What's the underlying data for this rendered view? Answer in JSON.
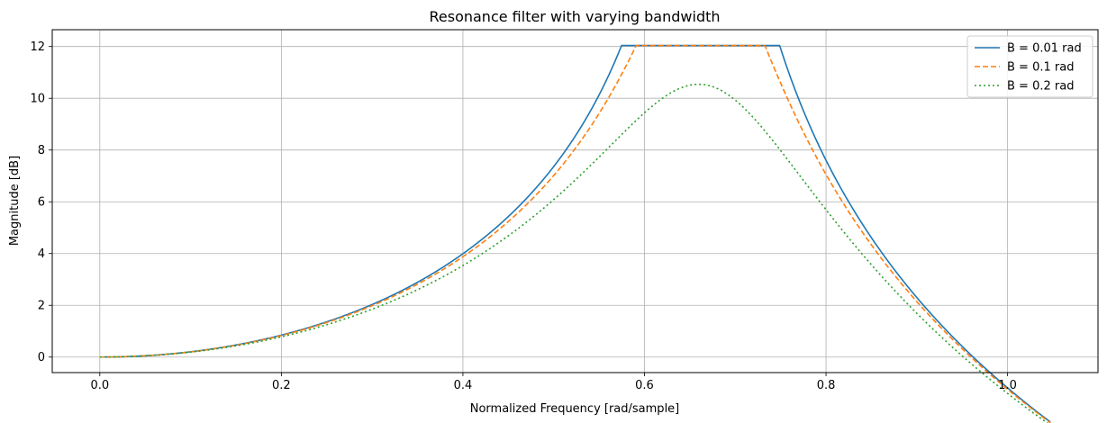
{
  "chart_data": {
    "type": "line",
    "title": "Resonance filter with varying bandwidth",
    "xlabel": "Normalized Frequency [rad/sample]",
    "ylabel": "Magnitude [dB]",
    "xlim": [
      -0.0524,
      1.0996
    ],
    "ylim": [
      -0.6,
      12.65
    ],
    "xticks": [
      0.0,
      0.2,
      0.4,
      0.6,
      0.8,
      1.0
    ],
    "xtick_labels": [
      "0.0",
      "0.2",
      "0.4",
      "0.6",
      "0.8",
      "1.0"
    ],
    "yticks": [
      0,
      2,
      4,
      6,
      8,
      10,
      12
    ],
    "ytick_labels": [
      "0",
      "2",
      "4",
      "6",
      "8",
      "10",
      "12"
    ],
    "grid": true,
    "legend_position": "top-right",
    "x_range": [
      0.0,
      1.0472
    ],
    "center_frequency": 0.6667,
    "peak_db": 12.04,
    "series": [
      {
        "name": "B = 0.01 rad",
        "bandwidth": 0.01,
        "color": "#1f77b4",
        "style": "solid"
      },
      {
        "name": "B = 0.1 rad",
        "bandwidth": 0.1,
        "color": "#ff7f0e",
        "style": "dashed"
      },
      {
        "name": "B = 0.2 rad",
        "bandwidth": 0.2,
        "color": "#2ca02c",
        "style": "dotted"
      }
    ]
  }
}
